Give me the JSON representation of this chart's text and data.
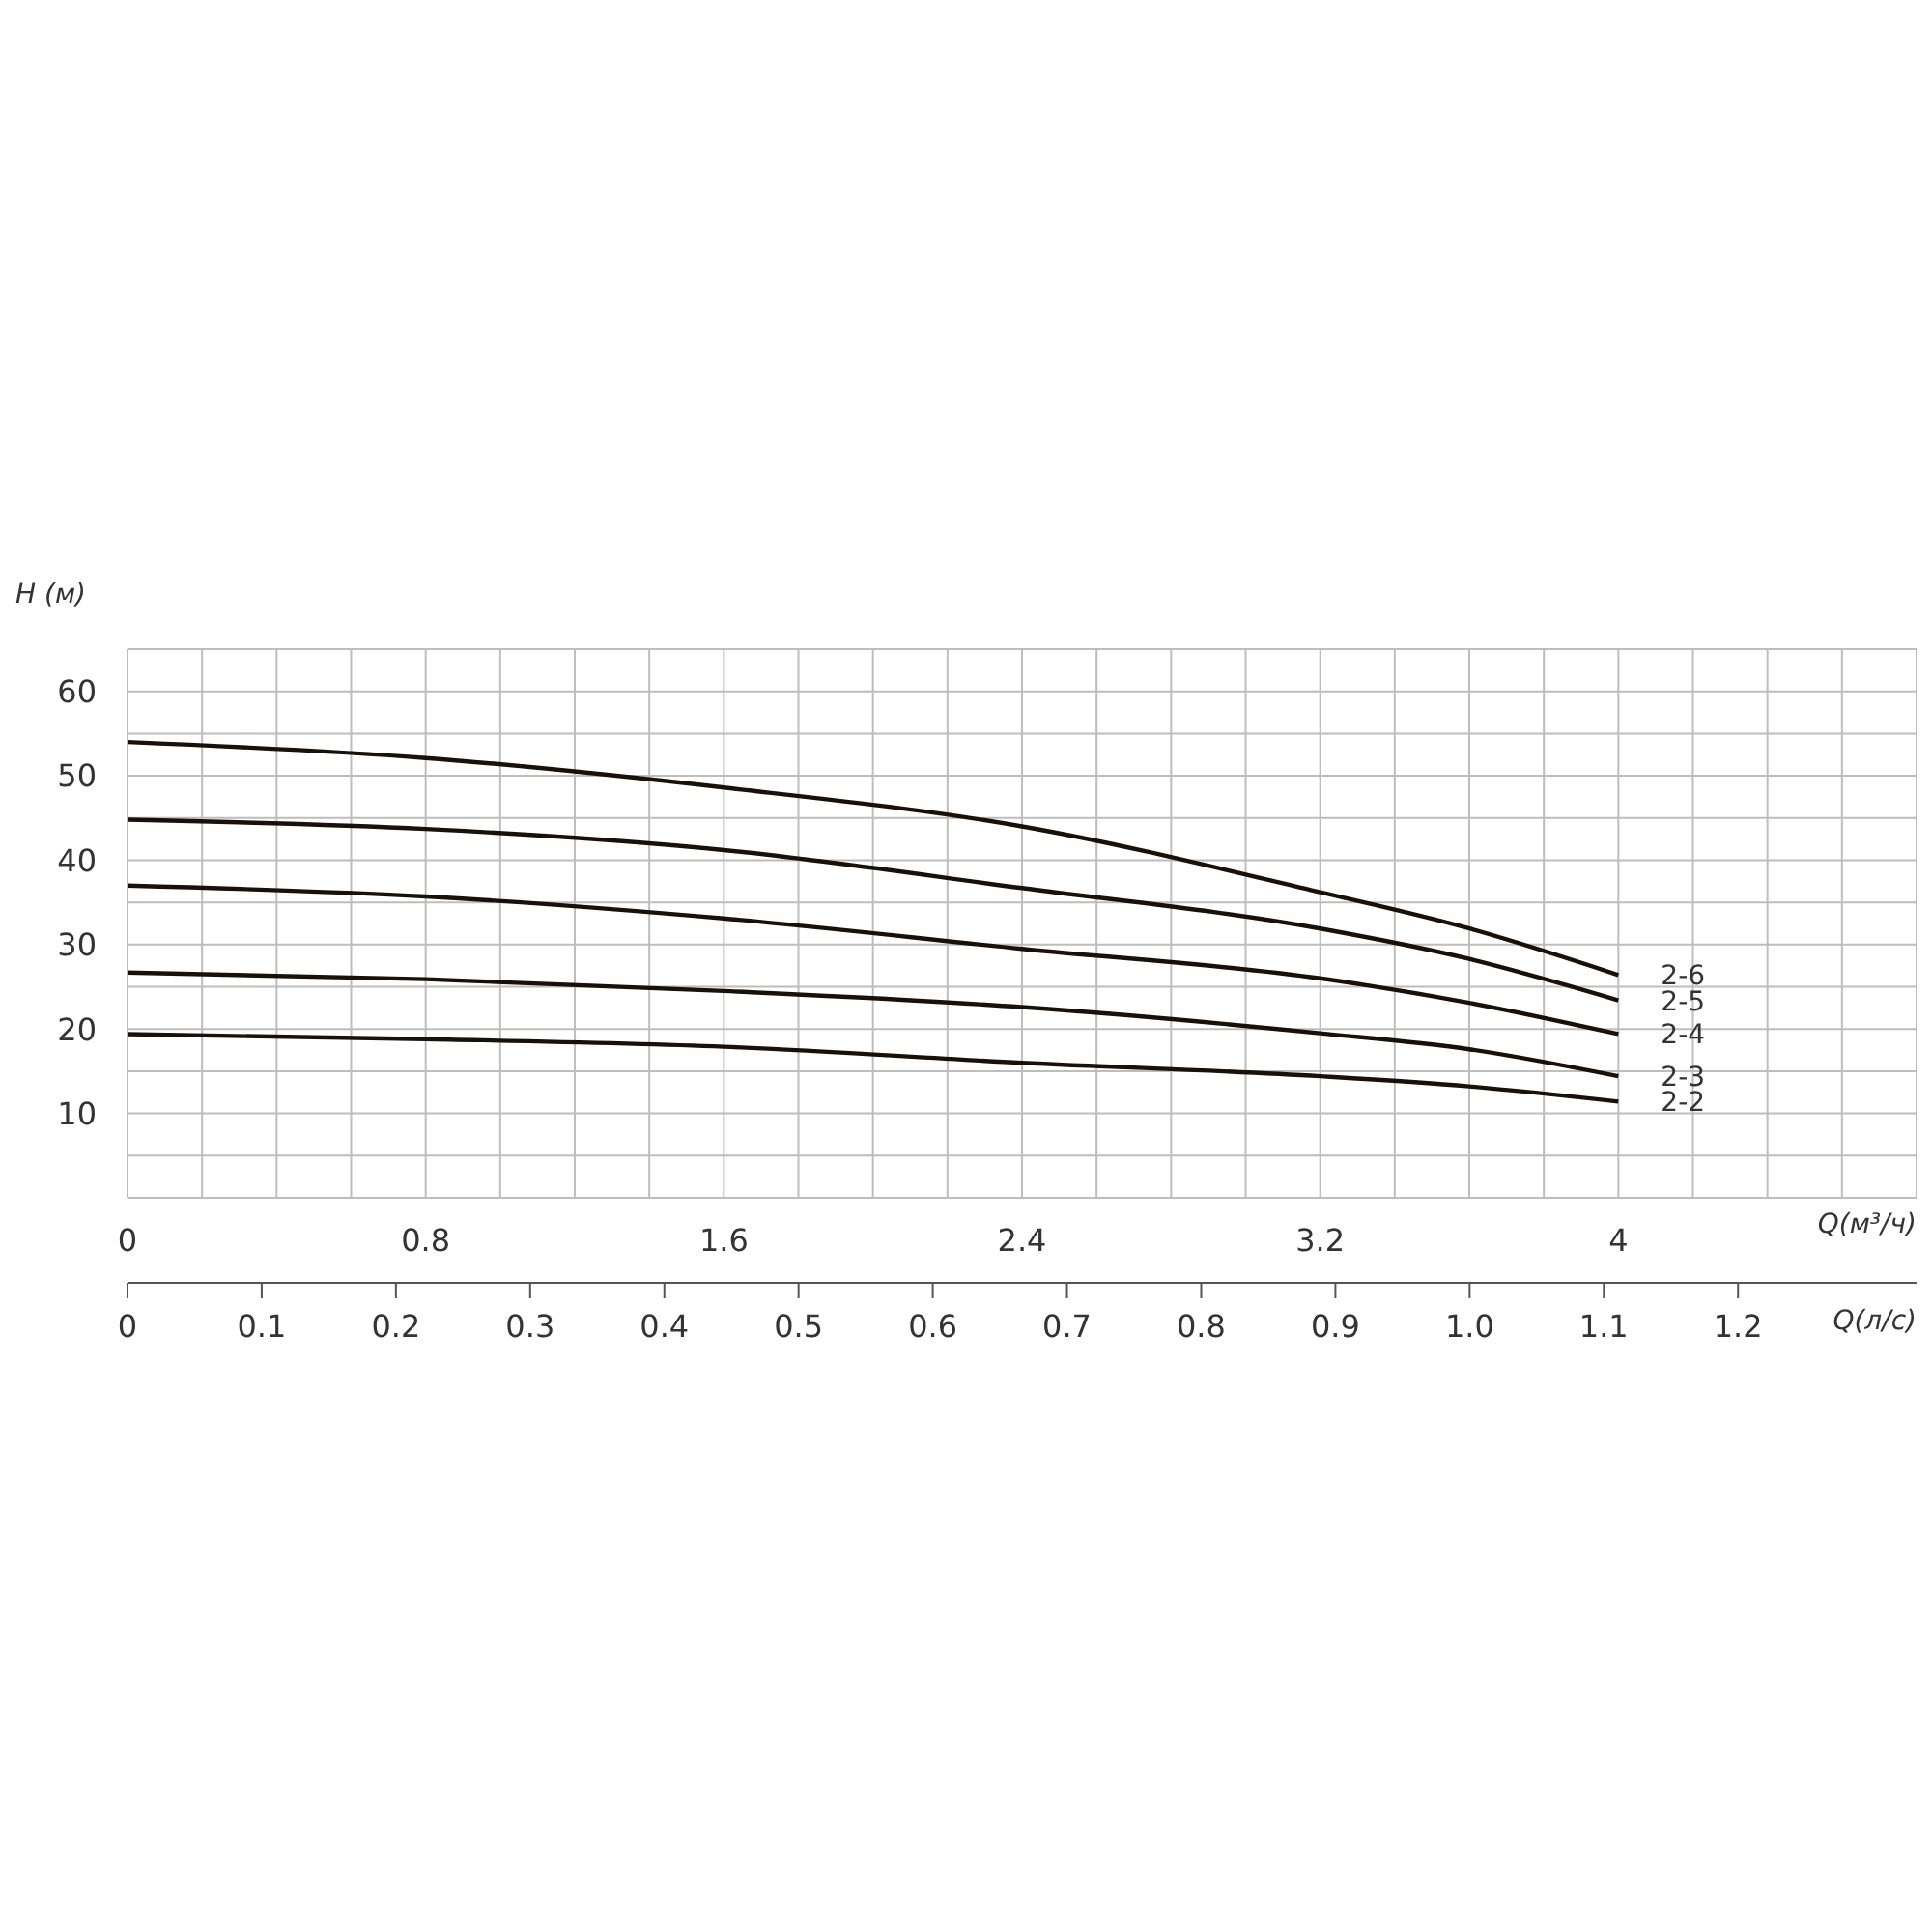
{
  "chart_data": {
    "type": "line",
    "xlabel": "Q(м³/ч)",
    "ylabel": "H (м)",
    "x2label": "Q(л/с)",
    "xlim": [
      0,
      4.8
    ],
    "xticks": [
      0,
      {
        "value": 0.2,
        "label": null
      },
      {
        "value": 0.4,
        "label": null
      },
      {
        "value": 0.6,
        "label": null
      },
      0.8,
      {
        "value": 1.0,
        "label": null
      },
      {
        "value": 1.2,
        "label": null
      },
      {
        "value": 1.4,
        "label": null
      },
      1.6,
      {
        "value": 1.8,
        "label": null
      },
      {
        "value": 2.0,
        "label": null
      },
      {
        "value": 2.2,
        "label": null
      },
      2.4,
      {
        "value": 2.6,
        "label": null
      },
      {
        "value": 2.8,
        "label": null
      },
      {
        "value": 3.0,
        "label": null
      },
      3.2,
      {
        "value": 3.4,
        "label": null
      },
      {
        "value": 3.6,
        "label": null
      },
      {
        "value": 3.8,
        "label": null
      },
      4,
      {
        "value": 4.2,
        "label": null
      },
      {
        "value": 4.4,
        "label": null
      },
      {
        "value": 4.6,
        "label": null
      },
      {
        "value": 4.8,
        "label": null
      }
    ],
    "x2lim": [
      0,
      1.333
    ],
    "x2ticks": [
      0,
      0.1,
      0.2,
      0.3,
      0.4,
      0.5,
      0.6,
      0.7,
      0.8,
      0.9,
      {
        "value": 1.0,
        "label": "1.0"
      },
      1.1,
      1.2
    ],
    "ylim": [
      0,
      65
    ],
    "yticks": [
      {
        "value": 0,
        "label": null
      },
      {
        "value": 5,
        "label": null
      },
      10,
      {
        "value": 15,
        "label": null
      },
      20,
      {
        "value": 25,
        "label": null
      },
      30,
      {
        "value": 35,
        "label": null
      },
      40,
      {
        "value": 45,
        "label": null
      },
      50,
      {
        "value": 55,
        "label": null
      },
      60,
      {
        "value": 65,
        "label": null
      }
    ],
    "x": [
      0,
      0.8,
      1.6,
      2.4,
      3.2,
      3.6,
      4
    ],
    "series": [
      {
        "name": "2-6",
        "color": "#1a1008",
        "values": [
          54,
          52.1,
          48.6,
          44,
          36.2,
          31.9,
          26.4
        ]
      },
      {
        "name": "2-5",
        "color": "#1a1008",
        "values": [
          44.8,
          43.7,
          41.2,
          36.7,
          31.9,
          28.3,
          23.4
        ]
      },
      {
        "name": "2-4",
        "color": "#1a1008",
        "values": [
          37,
          35.7,
          33.1,
          29.5,
          26,
          23.1,
          19.4
        ]
      },
      {
        "name": "2-3",
        "color": "#1a1008",
        "values": [
          26.7,
          25.9,
          24.5,
          22.6,
          19.5,
          17.6,
          14.4
        ]
      },
      {
        "name": "2-2",
        "color": "#1a1008",
        "values": [
          19.4,
          18.8,
          17.9,
          16,
          14.4,
          13.2,
          11.4
        ]
      }
    ],
    "grid": true,
    "legend": false,
    "marker": "none",
    "line_style": "solid"
  }
}
